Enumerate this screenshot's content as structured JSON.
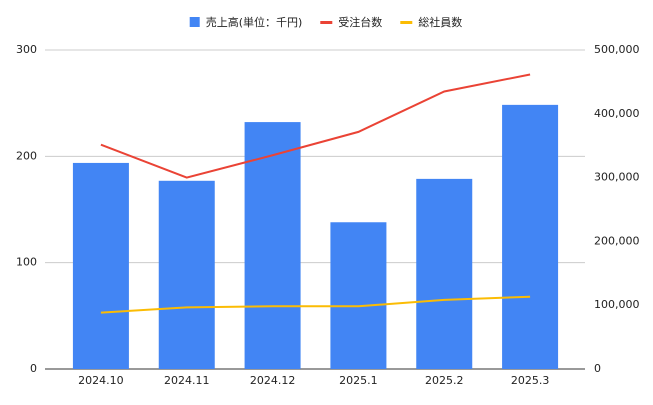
{
  "chart_data": {
    "type": "bar-line",
    "categories": [
      "2024.10",
      "2024.11",
      "2024.12",
      "2025.1",
      "2025.2",
      "2025.3"
    ],
    "series": [
      {
        "name": "売上高(単位：千円)",
        "type": "bar",
        "axis": "y2",
        "color": "#4285f4",
        "values": [
          323000,
          295000,
          387000,
          230000,
          298000,
          414000
        ]
      },
      {
        "name": "受注台数",
        "type": "line",
        "axis": "y",
        "color": "#ea4335",
        "values": [
          211,
          180,
          201,
          223,
          261,
          277
        ]
      },
      {
        "name": "総社員数",
        "type": "line",
        "axis": "y",
        "color": "#fbbc04",
        "values": [
          53,
          58,
          59,
          59,
          65,
          68
        ]
      }
    ],
    "ylim": [
      0,
      300
    ],
    "yticks": [
      0,
      100,
      200,
      300
    ],
    "y2lim": [
      0,
      500000
    ],
    "y2ticks": [
      0,
      {
        "value": 100000,
        "label": "100,000"
      },
      {
        "value": 200000,
        "label": "200,000"
      },
      {
        "value": 300000,
        "label": "300,000"
      },
      {
        "value": 400000,
        "label": "400,000"
      },
      {
        "value": 500000,
        "label": "500,000"
      }
    ],
    "grid": true,
    "legend": "top"
  }
}
